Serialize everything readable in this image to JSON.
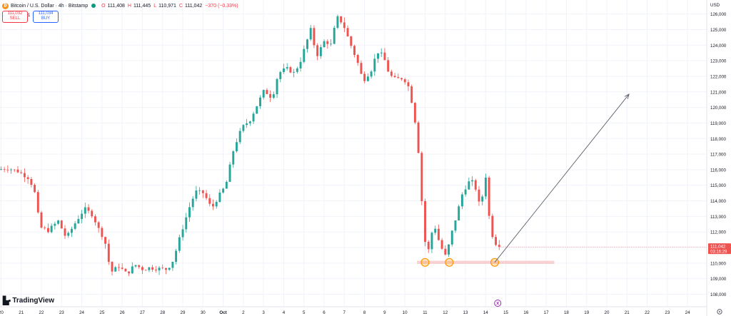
{
  "header": {
    "symbol_icon": "bitcoin-icon",
    "title": "Bitcoin / U.S. Dollar · 4h · Bitstamp",
    "open_label": "O",
    "open": "111,408",
    "high_label": "H",
    "high": "111,445",
    "low_label": "L",
    "low": "110,971",
    "close_label": "C",
    "close": "111,042",
    "change": "−370 (−0.33%)"
  },
  "trade": {
    "sell_price": "111,032",
    "sell_label": "SELL",
    "spread": "1",
    "buy_price": "111,034",
    "buy_label": "BUY"
  },
  "branding": {
    "logo_text": "TradingView",
    "logo_icon": "tradingview-logo-icon"
  },
  "chart_data": {
    "type": "candlestick",
    "currency": "USD",
    "y_ticks": [
      108000,
      109000,
      110000,
      111000,
      112000,
      113000,
      114000,
      115000,
      116000,
      117000,
      118000,
      119000,
      120000,
      121000,
      122000,
      123000,
      124000,
      125000,
      126000
    ],
    "ylim": [
      107200,
      126900
    ],
    "x_ticks": [
      {
        "label": "20",
        "day": -10
      },
      {
        "label": "21",
        "day": -9
      },
      {
        "label": "22",
        "day": -8
      },
      {
        "label": "23",
        "day": -7
      },
      {
        "label": "24",
        "day": -6
      },
      {
        "label": "25",
        "day": -5
      },
      {
        "label": "26",
        "day": -4
      },
      {
        "label": "27",
        "day": -3
      },
      {
        "label": "28",
        "day": -2
      },
      {
        "label": "29",
        "day": -1
      },
      {
        "label": "30",
        "day": 0
      },
      {
        "label": "Oct",
        "day": 1
      },
      {
        "label": "2",
        "day": 2
      },
      {
        "label": "3",
        "day": 3
      },
      {
        "label": "4",
        "day": 4
      },
      {
        "label": "5",
        "day": 5
      },
      {
        "label": "6",
        "day": 6
      },
      {
        "label": "7",
        "day": 7
      },
      {
        "label": "8",
        "day": 8
      },
      {
        "label": "9",
        "day": 9
      },
      {
        "label": "10",
        "day": 10
      },
      {
        "label": "11",
        "day": 11
      },
      {
        "label": "12",
        "day": 12
      },
      {
        "label": "13",
        "day": 13
      },
      {
        "label": "14",
        "day": 14
      },
      {
        "label": "15",
        "day": 15
      },
      {
        "label": "16",
        "day": 16
      },
      {
        "label": "17",
        "day": 17
      },
      {
        "label": "18",
        "day": 18
      },
      {
        "label": "19",
        "day": 19
      },
      {
        "label": "20",
        "day": 20
      },
      {
        "label": "21",
        "day": 21
      },
      {
        "label": "22",
        "day": 22
      },
      {
        "label": "23",
        "day": 23
      },
      {
        "label": "24",
        "day": 24
      }
    ],
    "xlim": [
      -10.05,
      24.95
    ],
    "candle_interval_days": 0.1667,
    "first_candle_day": -10,
    "anchors": [
      [
        -10,
        116000
      ],
      [
        -9.5,
        116100
      ],
      [
        -9,
        115900
      ],
      [
        -8.5,
        115500
      ],
      [
        -8.2,
        114800
      ],
      [
        -7.9,
        112300
      ],
      [
        -7.5,
        112100
      ],
      [
        -7,
        112700
      ],
      [
        -6.6,
        111600
      ],
      [
        -6.2,
        112500
      ],
      [
        -5.7,
        113500
      ],
      [
        -5.3,
        113100
      ],
      [
        -5,
        112200
      ],
      [
        -4.7,
        111500
      ],
      [
        -4.4,
        109400
      ],
      [
        -4,
        109800
      ],
      [
        -3.6,
        109300
      ],
      [
        -3.2,
        109900
      ],
      [
        -2.8,
        109600
      ],
      [
        -2.5,
        109700
      ],
      [
        -1.6,
        109600
      ],
      [
        -1.3,
        110200
      ],
      [
        -0.9,
        112000
      ],
      [
        -0.5,
        113600
      ],
      [
        -0.2,
        114600
      ],
      [
        0.2,
        114500
      ],
      [
        0.6,
        113500
      ],
      [
        0.9,
        114200
      ],
      [
        1.3,
        115000
      ],
      [
        1.7,
        117400
      ],
      [
        2.1,
        118700
      ],
      [
        2.5,
        119200
      ],
      [
        2.9,
        120300
      ],
      [
        3.2,
        121100
      ],
      [
        3.6,
        120600
      ],
      [
        3.9,
        122200
      ],
      [
        4.3,
        122500
      ],
      [
        4.7,
        122200
      ],
      [
        5,
        123000
      ],
      [
        5.3,
        124200
      ],
      [
        5.5,
        125000
      ],
      [
        5.8,
        123300
      ],
      [
        6.2,
        124300
      ],
      [
        6.5,
        124000
      ],
      [
        6.8,
        125800
      ],
      [
        7.1,
        125400
      ],
      [
        7.4,
        124300
      ],
      [
        7.8,
        123000
      ],
      [
        8.1,
        121700
      ],
      [
        8.5,
        122400
      ],
      [
        8.8,
        123600
      ],
      [
        9.1,
        123300
      ],
      [
        9.4,
        122100
      ],
      [
        9.7,
        121800
      ],
      [
        10.1,
        121900
      ],
      [
        10.4,
        121200
      ],
      [
        10.7,
        118900
      ],
      [
        10.9,
        116400
      ],
      [
        11.1,
        111800
      ],
      [
        11.3,
        110600
      ],
      [
        11.6,
        112600
      ],
      [
        11.9,
        111200
      ],
      [
        12.2,
        110400
      ],
      [
        12.5,
        112000
      ],
      [
        12.8,
        113400
      ],
      [
        13,
        114400
      ],
      [
        13.3,
        115200
      ],
      [
        13.6,
        115200
      ],
      [
        13.9,
        113500
      ],
      [
        14.2,
        115800
      ],
      [
        14.3,
        113300
      ],
      [
        14.5,
        111800
      ],
      [
        14.75,
        111042
      ]
    ],
    "last_price": "111,042",
    "last_price_countdown": "03:16:29",
    "support_zone": {
      "day_start": 10.6,
      "day_end": 17.4,
      "price_low": 109950,
      "price_high": 110150
    },
    "support_touches": [
      {
        "day": 11.0,
        "price": 110050
      },
      {
        "day": 12.2,
        "price": 110050
      },
      {
        "day": 14.45,
        "price": 110050
      }
    ],
    "projection_arrow": {
      "from": {
        "day": 14.45,
        "price": 110050
      },
      "to": {
        "day": 21.1,
        "price": 120850
      }
    },
    "axis_settings_icon": "gear-icon",
    "event_marker_icon": "dividend-marker-icon",
    "colors": {
      "up": "#26a69a",
      "down": "#ef5350",
      "grid": "#f0f3fa",
      "axis_text": "#131722",
      "support": "#f7c6c8",
      "touch": "#ff9800",
      "arrow": "#5d606b",
      "price_tag": "#ef5350"
    }
  }
}
